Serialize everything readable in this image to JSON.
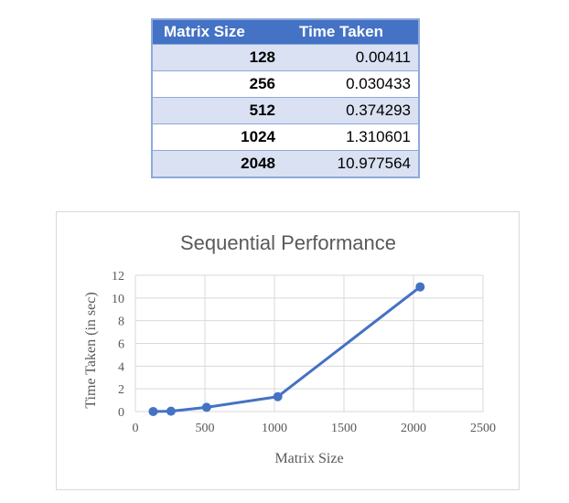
{
  "table": {
    "headers": [
      "Matrix Size",
      "Time Taken"
    ],
    "rows": [
      [
        "128",
        "0.00411"
      ],
      [
        "256",
        "0.030433"
      ],
      [
        "512",
        "0.374293"
      ],
      [
        "1024",
        "1.310601"
      ],
      [
        "2048",
        "10.977564"
      ]
    ]
  },
  "colors": {
    "accent": "#4472c4",
    "band": "#d9e1f2",
    "grid": "#d9d9d9"
  },
  "chart_data": {
    "type": "scatter",
    "title": "Sequential Performance",
    "xlabel": "Matrix Size",
    "ylabel": "Time Taken (in sec)",
    "xlim": [
      0,
      2500
    ],
    "ylim": [
      0,
      12
    ],
    "x_ticks": [
      0,
      500,
      1000,
      1500,
      2000,
      2500
    ],
    "y_ticks": [
      0,
      2,
      4,
      6,
      8,
      10,
      12
    ],
    "grid": true,
    "series": [
      {
        "x": [
          128,
          256,
          512,
          1024,
          2048
        ],
        "y": [
          0.00411,
          0.030433,
          0.374293,
          1.310601,
          10.977564
        ],
        "lines": true,
        "markers": true
      }
    ]
  }
}
